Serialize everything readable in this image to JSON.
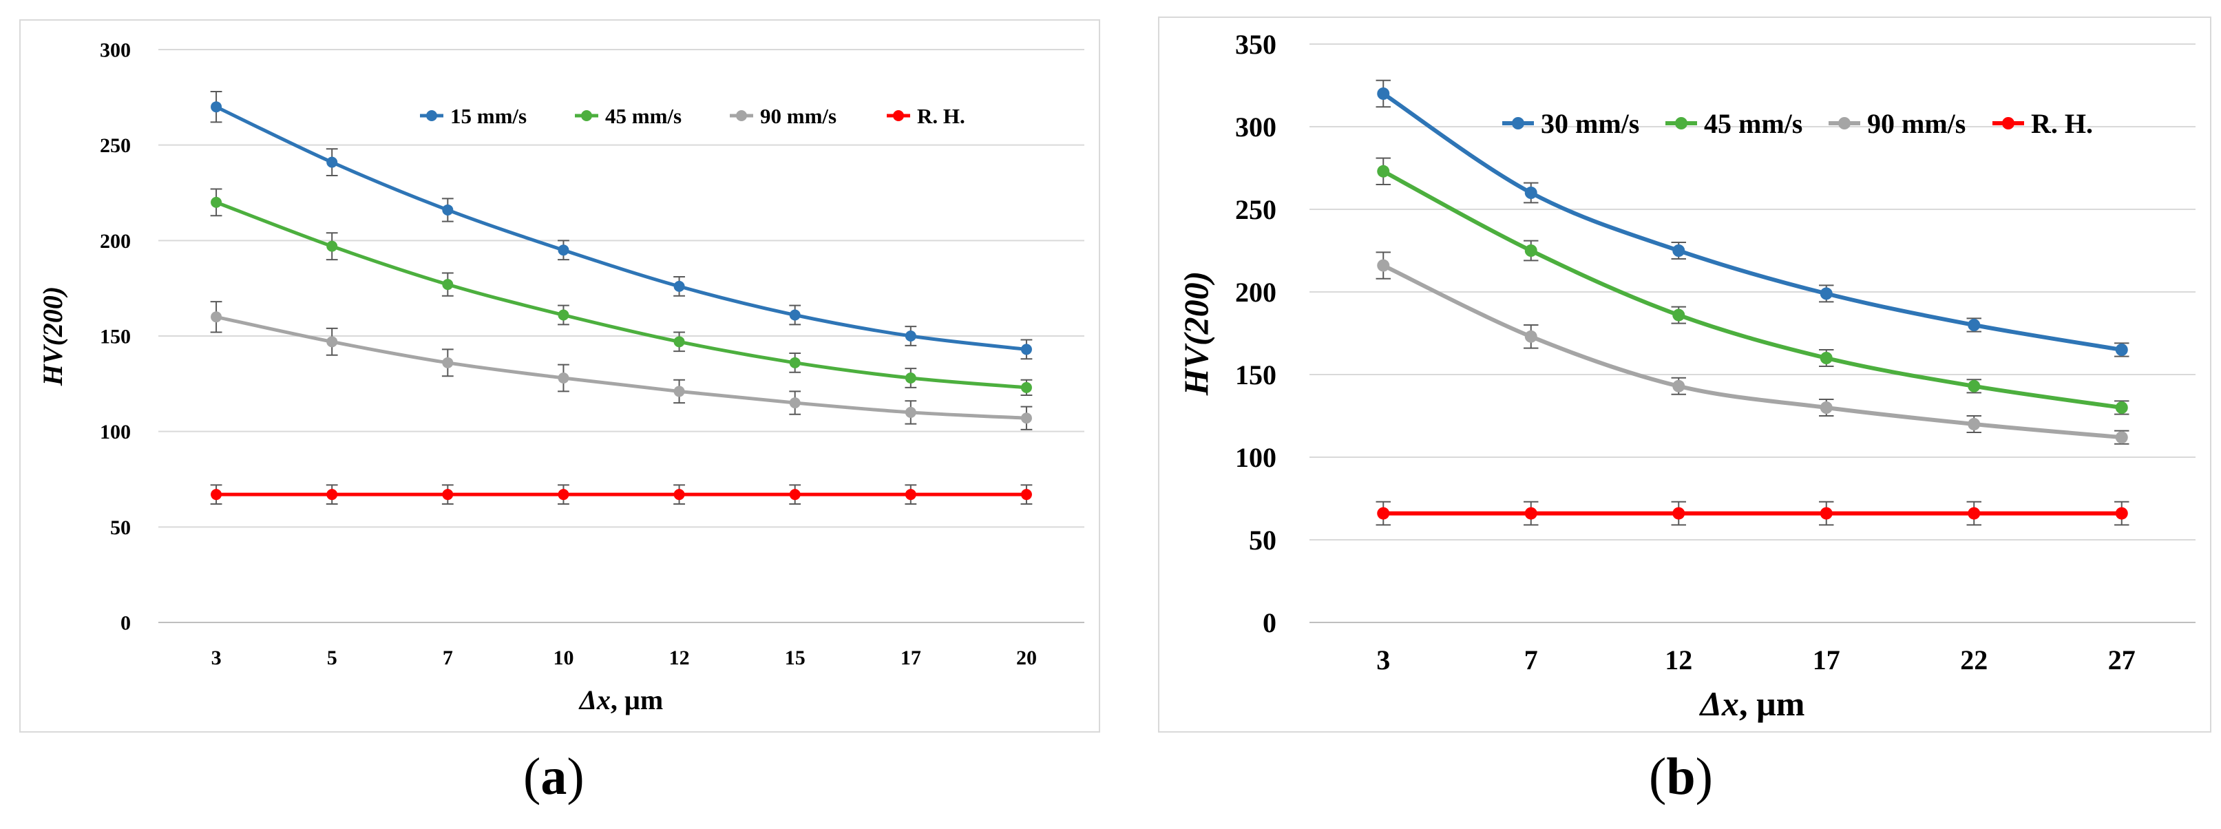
{
  "chart_data": [
    {
      "id": "a",
      "type": "line",
      "caption": "a",
      "ylabel": "HV(200)",
      "xlabel_var": "Δx",
      "xlabel_unit": ", µm",
      "ylim": [
        0,
        300
      ],
      "yticks": [
        0,
        50,
        100,
        150,
        200,
        250,
        300
      ],
      "grid": true,
      "legend_position": "top-right",
      "categories": [
        "3",
        "5",
        "7",
        "10",
        "12",
        "15",
        "17",
        "20"
      ],
      "series": [
        {
          "name": "15 mm/s",
          "color": "#2e75b6",
          "values": [
            270,
            241,
            216,
            195,
            176,
            161,
            150,
            143
          ],
          "errors": [
            8,
            7,
            6,
            5,
            5,
            5,
            5,
            5
          ]
        },
        {
          "name": "45 mm/s",
          "color": "#4caf3e",
          "values": [
            220,
            197,
            177,
            161,
            147,
            136,
            128,
            123
          ],
          "errors": [
            7,
            7,
            6,
            5,
            5,
            5,
            5,
            4
          ]
        },
        {
          "name": "90 mm/s",
          "color": "#a5a5a5",
          "values": [
            160,
            147,
            136,
            128,
            121,
            115,
            110,
            107
          ],
          "errors": [
            8,
            7,
            7,
            7,
            6,
            6,
            6,
            6
          ]
        },
        {
          "name": "R. H.",
          "color": "#ff0000",
          "values": [
            67,
            67,
            67,
            67,
            67,
            67,
            67,
            67
          ],
          "errors": [
            5,
            5,
            5,
            5,
            5,
            5,
            5,
            5
          ]
        }
      ]
    },
    {
      "id": "b",
      "type": "line",
      "caption": "b",
      "ylabel": "HV(200)",
      "xlabel_var": "Δx",
      "xlabel_unit": ", µm",
      "ylim": [
        0,
        350
      ],
      "yticks": [
        0,
        50,
        100,
        150,
        200,
        250,
        300,
        350
      ],
      "grid": true,
      "legend_position": "top-right",
      "categories": [
        "3",
        "7",
        "12",
        "17",
        "22",
        "27"
      ],
      "series": [
        {
          "name": "30 mm/s",
          "color": "#2e75b6",
          "values": [
            320,
            260,
            225,
            199,
            180,
            165
          ],
          "errors": [
            8,
            6,
            5,
            5,
            4,
            4
          ]
        },
        {
          "name": "45 mm/s",
          "color": "#4caf3e",
          "values": [
            273,
            225,
            186,
            160,
            143,
            130
          ],
          "errors": [
            8,
            6,
            5,
            5,
            4,
            4
          ]
        },
        {
          "name": "90 mm/s",
          "color": "#a5a5a5",
          "values": [
            216,
            173,
            143,
            130,
            120,
            112
          ],
          "errors": [
            8,
            7,
            5,
            5,
            5,
            4
          ]
        },
        {
          "name": "R. H.",
          "color": "#ff0000",
          "values": [
            66,
            66,
            66,
            66,
            66,
            66
          ],
          "errors": [
            7,
            7,
            7,
            7,
            7,
            7
          ]
        }
      ]
    }
  ]
}
